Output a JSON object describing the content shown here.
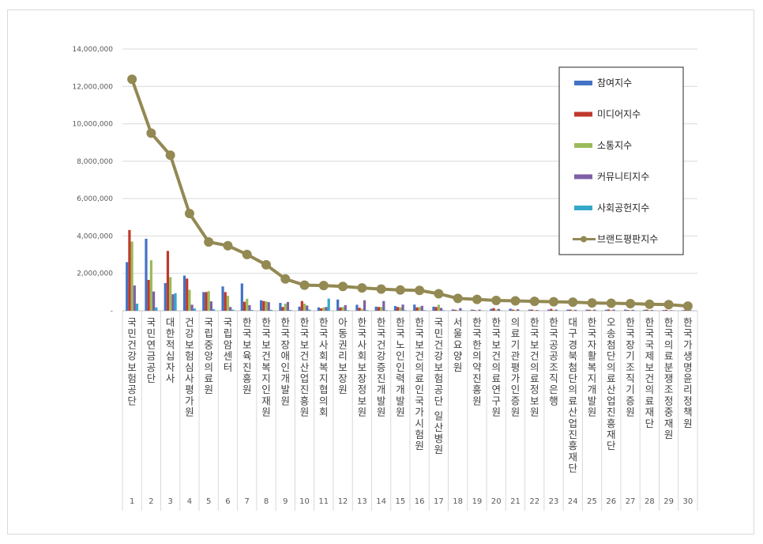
{
  "chart_data": {
    "type": "bar",
    "title": "",
    "xlabel": "",
    "ylabel": "",
    "ylim": [
      0,
      14000000
    ],
    "yticks": [
      0,
      2000000,
      4000000,
      6000000,
      8000000,
      10000000,
      12000000,
      14000000
    ],
    "ytick_labels": [
      "-",
      "2,000,000",
      "4,000,000",
      "6,000,000",
      "8,000,000",
      "10,000,000",
      "12,000,000",
      "14,000,000"
    ],
    "grid": true,
    "legend_position": "right",
    "ranks": [
      "1",
      "2",
      "3",
      "4",
      "5",
      "6",
      "7",
      "8",
      "9",
      "10",
      "11",
      "12",
      "13",
      "14",
      "15",
      "16",
      "17",
      "18",
      "19",
      "20",
      "21",
      "22",
      "23",
      "24",
      "25",
      "26",
      "27",
      "28",
      "29",
      "30"
    ],
    "categories": [
      "국민건강보험공단",
      "국민연금공단",
      "대한적십자사",
      "건강보험심사평가원",
      "국립중앙의료원",
      "국립암센터",
      "한국보육진흥원",
      "한국보건복지인재원",
      "한국장애인개발원",
      "한국보건산업진흥원",
      "한국사회복지협의회",
      "아동권리보장원",
      "한국사회보장정보원",
      "한국건강증진개발원",
      "한국노인인력개발원",
      "한국보건의료인국가시험원",
      "국민건강보험공단 일산병원",
      "서울요양원",
      "한국한의약진흥원",
      "한국보건의료연구원",
      "의료기관평가인증원",
      "한국보건의료정보원",
      "한국공공조직은행",
      "대구경북첨단의료산업진흥재단",
      "한국자활복지개발원",
      "오송첨단의료산업진흥재단",
      "한국장기조직기증원",
      "한국국제보건의료재단",
      "한국의료분쟁조정중재원",
      "한국가생명윤리정책원"
    ],
    "series": [
      {
        "name": "참여지수",
        "kind": "bar",
        "color": "#4472c4",
        "values": [
          2600000,
          3850000,
          1480000,
          1880000,
          1000000,
          1300000,
          1460000,
          560000,
          420000,
          220000,
          180000,
          600000,
          320000,
          220000,
          250000,
          330000,
          220000,
          70000,
          60000,
          100000,
          110000,
          60000,
          60000,
          60000,
          60000,
          50000,
          60000,
          50000,
          40000,
          30000
        ]
      },
      {
        "name": "미디어지수",
        "kind": "bar",
        "color": "#c0392b",
        "values": [
          4320000,
          1650000,
          3200000,
          1720000,
          1000000,
          1000000,
          480000,
          520000,
          200000,
          520000,
          130000,
          180000,
          160000,
          200000,
          200000,
          180000,
          200000,
          50000,
          40000,
          140000,
          60000,
          60000,
          100000,
          60000,
          50000,
          70000,
          40000,
          60000,
          50000,
          40000
        ]
      },
      {
        "name": "소통지수",
        "kind": "bar",
        "color": "#9bbb59",
        "values": [
          3700000,
          2700000,
          1800000,
          1120000,
          1050000,
          800000,
          640000,
          500000,
          380000,
          380000,
          180000,
          200000,
          100000,
          200000,
          180000,
          200000,
          320000,
          30000,
          20000,
          60000,
          40000,
          30000,
          40000,
          30000,
          30000,
          30000,
          30000,
          30000,
          20000,
          20000
        ]
      },
      {
        "name": "커뮤니티지수",
        "kind": "bar",
        "color": "#7f5fa7",
        "values": [
          1350000,
          1030000,
          880000,
          320000,
          500000,
          200000,
          300000,
          460000,
          470000,
          280000,
          200000,
          300000,
          560000,
          520000,
          330000,
          260000,
          150000,
          140000,
          60000,
          100000,
          80000,
          40000,
          60000,
          50000,
          60000,
          60000,
          50000,
          40000,
          30000,
          30000
        ]
      },
      {
        "name": "사회공헌지수",
        "kind": "bar",
        "color": "#35a8c9",
        "values": [
          380000,
          180000,
          940000,
          120000,
          80000,
          60000,
          40000,
          50000,
          40000,
          60000,
          650000,
          30000,
          30000,
          30000,
          30000,
          30000,
          30000,
          20000,
          10000,
          20000,
          10000,
          10000,
          10000,
          10000,
          10000,
          10000,
          10000,
          10000,
          10000,
          10000
        ]
      },
      {
        "name": "브랜드평판지수",
        "kind": "line",
        "color": "#938953",
        "values": [
          12380000,
          9500000,
          8320000,
          5200000,
          3680000,
          3480000,
          3010000,
          2460000,
          1700000,
          1370000,
          1350000,
          1300000,
          1220000,
          1160000,
          1110000,
          1090000,
          910000,
          660000,
          610000,
          550000,
          530000,
          500000,
          480000,
          460000,
          420000,
          400000,
          380000,
          350000,
          330000,
          250000
        ]
      }
    ]
  }
}
